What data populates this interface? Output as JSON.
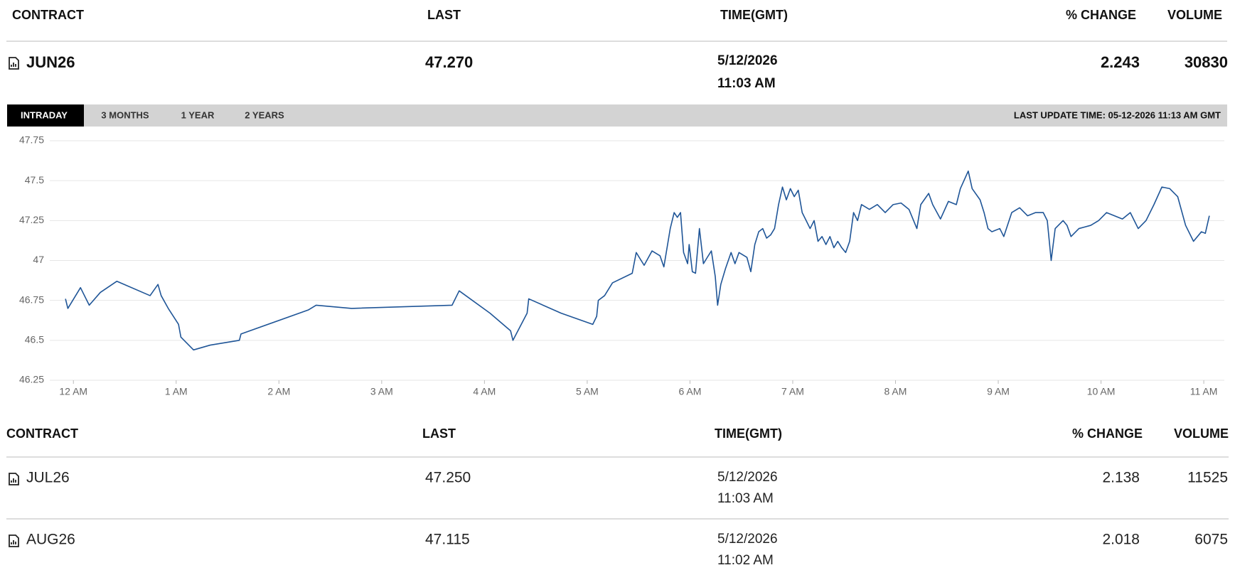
{
  "header": {
    "columns": [
      "CONTRACT",
      "LAST",
      "TIME(GMT)",
      "% CHANGE",
      "VOLUME"
    ]
  },
  "featured": {
    "contract": "JUN26",
    "last": "47.270",
    "date": "5/12/2026",
    "time": "11:03 AM",
    "change": "2.243",
    "volume": "30830"
  },
  "tabs": [
    "INTRADAY",
    "3 MONTHS",
    "1 YEAR",
    "2 YEARS"
  ],
  "last_update": "LAST UPDATE TIME: 05-12-2026 11:13 AM GMT",
  "chart_data": {
    "type": "line",
    "color": "#1f5597",
    "grid": true,
    "xlim": [
      -0.23,
      11.2
    ],
    "ylim": [
      46.25,
      47.75
    ],
    "xticks": [
      {
        "value": 0,
        "label": "12 AM"
      },
      {
        "value": 1,
        "label": "1 AM"
      },
      {
        "value": 2,
        "label": "2 AM"
      },
      {
        "value": 3,
        "label": "3 AM"
      },
      {
        "value": 4,
        "label": "4 AM"
      },
      {
        "value": 5,
        "label": "5 AM"
      },
      {
        "value": 6,
        "label": "6 AM"
      },
      {
        "value": 7,
        "label": "7 AM"
      },
      {
        "value": 8,
        "label": "8 AM"
      },
      {
        "value": 9,
        "label": "9 AM"
      },
      {
        "value": 10,
        "label": "10 AM"
      },
      {
        "value": 11,
        "label": "11 AM"
      }
    ],
    "yticks": [
      46.25,
      46.5,
      46.75,
      47,
      47.25,
      47.5,
      47.75
    ],
    "x": [
      -0.077,
      -0.054,
      0.069,
      0.092,
      0.154,
      0.262,
      0.423,
      0.746,
      0.823,
      0.854,
      0.923,
      1.023,
      1.046,
      1.169,
      1.331,
      1.615,
      1.631,
      2.285,
      2.362,
      2.708,
      3.685,
      3.754,
      4.054,
      4.254,
      4.277,
      4.415,
      4.431,
      4.746,
      5.054,
      5.092,
      5.108,
      5.169,
      5.246,
      5.438,
      5.477,
      5.554,
      5.631,
      5.708,
      5.746,
      5.808,
      5.846,
      5.877,
      5.908,
      5.938,
      5.977,
      5.992,
      6.023,
      6.054,
      6.092,
      6.131,
      6.169,
      6.208,
      6.246,
      6.269,
      6.3,
      6.346,
      6.4,
      6.438,
      6.477,
      6.554,
      6.592,
      6.631,
      6.669,
      6.708,
      6.746,
      6.785,
      6.823,
      6.862,
      6.9,
      6.938,
      6.977,
      7.015,
      7.054,
      7.092,
      7.131,
      7.169,
      7.208,
      7.246,
      7.285,
      7.323,
      7.362,
      7.4,
      7.438,
      7.477,
      7.515,
      7.554,
      7.592,
      7.631,
      7.669,
      7.746,
      7.823,
      7.9,
      7.977,
      8.054,
      8.131,
      8.208,
      8.246,
      8.323,
      8.362,
      8.438,
      8.515,
      8.592,
      8.631,
      8.708,
      8.746,
      8.823,
      8.862,
      8.9,
      8.938,
      9.015,
      9.054,
      9.131,
      9.208,
      9.285,
      9.362,
      9.438,
      9.477,
      9.515,
      9.554,
      9.631,
      9.669,
      9.708,
      9.785,
      9.9,
      9.977,
      10.054,
      10.131,
      10.208,
      10.285,
      10.362,
      10.438,
      10.515,
      10.592,
      10.669,
      10.746,
      10.823,
      10.9,
      10.977,
      11.015,
      11.054
    ],
    "values": [
      46.76,
      46.7,
      46.83,
      46.8,
      46.72,
      46.8,
      46.87,
      46.78,
      46.85,
      46.78,
      46.7,
      46.6,
      46.52,
      46.44,
      46.47,
      46.5,
      46.54,
      46.69,
      46.72,
      46.7,
      46.72,
      46.81,
      46.67,
      46.56,
      46.5,
      46.67,
      46.76,
      46.67,
      46.6,
      46.65,
      46.75,
      46.78,
      46.86,
      46.92,
      47.05,
      46.97,
      47.06,
      47.03,
      46.96,
      47.2,
      47.3,
      47.27,
      47.3,
      47.05,
      46.98,
      47.1,
      46.93,
      46.92,
      47.2,
      46.98,
      47.02,
      47.06,
      46.9,
      46.72,
      46.85,
      46.95,
      47.05,
      46.98,
      47.05,
      47.02,
      46.93,
      47.1,
      47.18,
      47.2,
      47.14,
      47.16,
      47.2,
      47.35,
      47.46,
      47.38,
      47.45,
      47.4,
      47.44,
      47.3,
      47.25,
      47.2,
      47.25,
      47.12,
      47.15,
      47.1,
      47.15,
      47.08,
      47.12,
      47.08,
      47.05,
      47.12,
      47.3,
      47.25,
      47.35,
      47.32,
      47.35,
      47.3,
      47.35,
      47.36,
      47.32,
      47.2,
      47.35,
      47.42,
      47.35,
      47.26,
      47.37,
      47.35,
      47.45,
      47.56,
      47.45,
      47.38,
      47.3,
      47.2,
      47.18,
      47.2,
      47.15,
      47.3,
      47.33,
      47.28,
      47.3,
      47.3,
      47.25,
      47.0,
      47.2,
      47.25,
      47.22,
      47.15,
      47.2,
      47.22,
      47.25,
      47.3,
      47.28,
      47.26,
      47.3,
      47.2,
      47.25,
      47.35,
      47.46,
      47.45,
      47.4,
      47.22,
      47.12,
      47.18,
      47.17,
      47.28
    ]
  },
  "table": {
    "columns": [
      "CONTRACT",
      "LAST",
      "TIME(GMT)",
      "% CHANGE",
      "VOLUME"
    ],
    "rows": [
      {
        "contract": "JUL26",
        "last": "47.250",
        "date": "5/12/2026",
        "time": "11:03 AM",
        "change": "2.138",
        "volume": "11525"
      },
      {
        "contract": "AUG26",
        "last": "47.115",
        "date": "5/12/2026",
        "time": "11:02 AM",
        "change": "2.018",
        "volume": "6075"
      }
    ]
  }
}
